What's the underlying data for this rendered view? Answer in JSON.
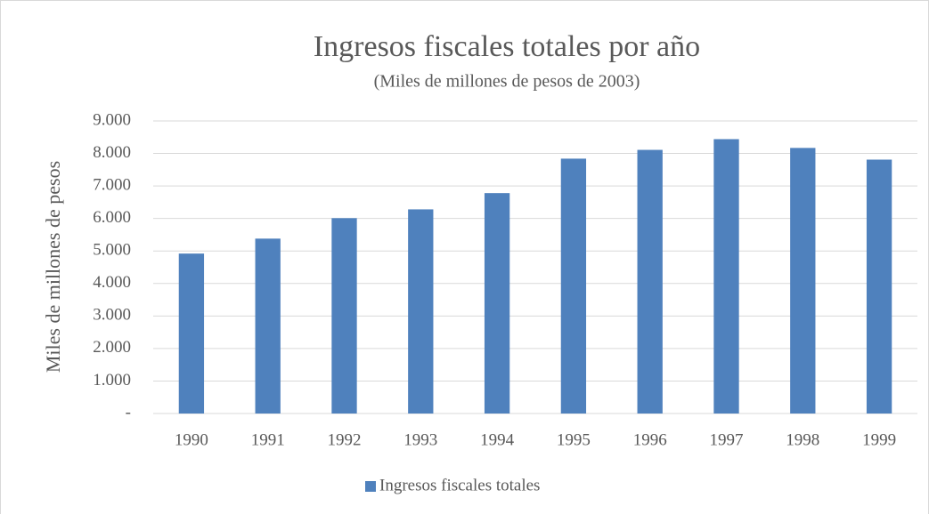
{
  "chart_data": {
    "type": "bar",
    "title": "Ingresos fiscales totales por año",
    "subtitle": "(Miles de millones de pesos de 2003)",
    "y_label": "Miles de millones de pesos",
    "categories": [
      "1990",
      "1991",
      "1992",
      "1993",
      "1994",
      "1995",
      "1996",
      "1997",
      "1998",
      "1999"
    ],
    "series": [
      {
        "name": "Ingresos fiscales totales",
        "color": "#4f81bd",
        "values": [
          4920,
          5380,
          6010,
          6280,
          6780,
          7840,
          8110,
          8440,
          8170,
          7810
        ]
      }
    ],
    "ylim": [
      0,
      9000
    ],
    "yticks": [
      {
        "value": 0,
        "label": "-"
      },
      {
        "value": 1000,
        "label": "1.000"
      },
      {
        "value": 2000,
        "label": "2.000"
      },
      {
        "value": 3000,
        "label": "3.000"
      },
      {
        "value": 4000,
        "label": "4.000"
      },
      {
        "value": 5000,
        "label": "5.000"
      },
      {
        "value": 6000,
        "label": "6.000"
      },
      {
        "value": 7000,
        "label": "7.000"
      },
      {
        "value": 8000,
        "label": "8.000"
      },
      {
        "value": 9000,
        "label": "9.000"
      }
    ],
    "grid": true,
    "legend": "bottom"
  }
}
